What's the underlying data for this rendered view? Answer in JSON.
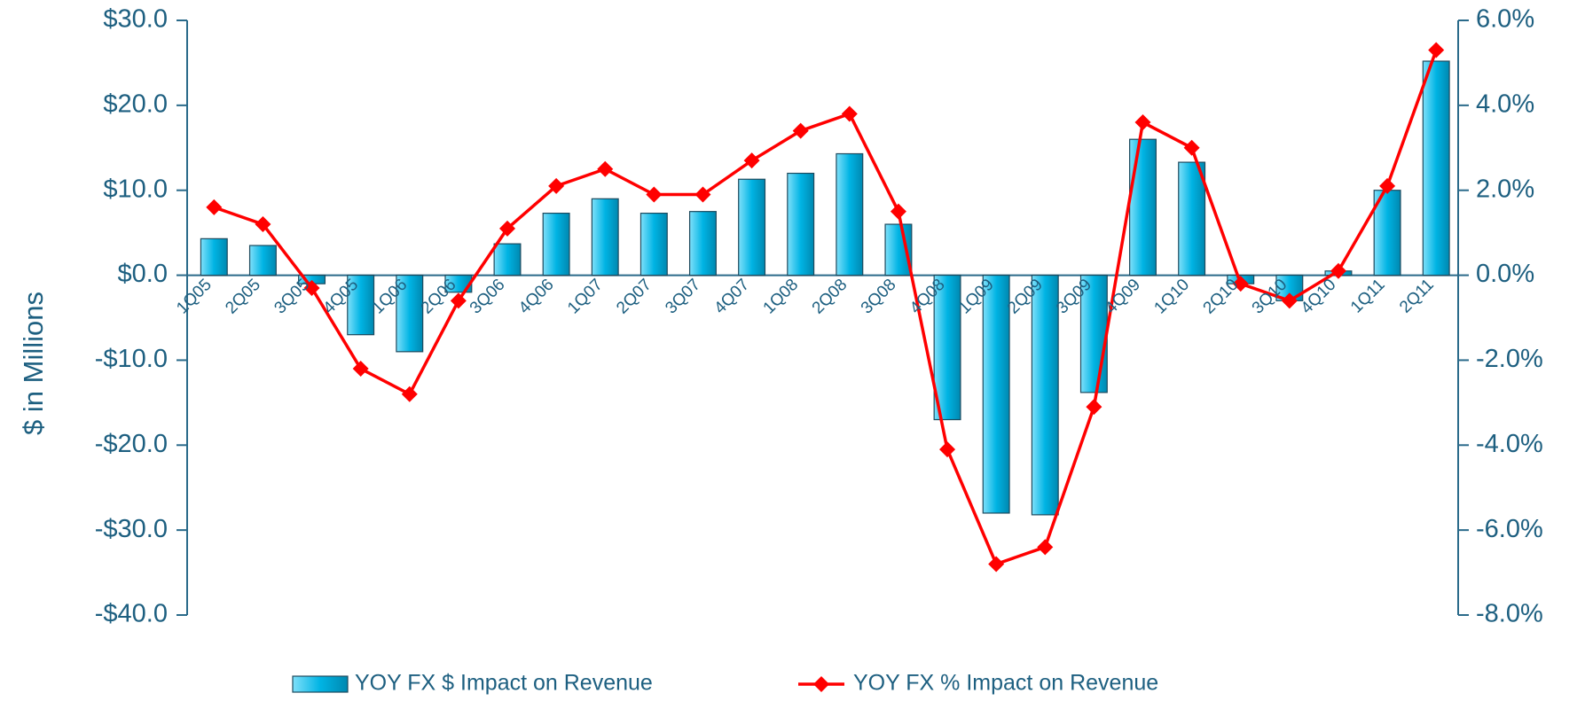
{
  "chart_data": {
    "type": "bar_line",
    "y_label": "$ in Millions",
    "categories": [
      "1Q05",
      "2Q05",
      "3Q05",
      "4Q05",
      "1Q06",
      "2Q06",
      "3Q06",
      "4Q06",
      "1Q07",
      "2Q07",
      "3Q07",
      "4Q07",
      "1Q08",
      "2Q08",
      "3Q08",
      "4Q08",
      "1Q09",
      "2Q09",
      "3Q09",
      "4Q09",
      "1Q10",
      "2Q10",
      "3Q10",
      "4Q10",
      "1Q11",
      "2Q11"
    ],
    "series": [
      {
        "name": "YOY FX $ Impact on Revenue",
        "type": "bar",
        "color": "#00b4e4",
        "values": [
          4.3,
          3.5,
          -1.0,
          -7.0,
          -9.0,
          -2.0,
          3.7,
          7.3,
          9.0,
          7.3,
          7.5,
          11.3,
          12.0,
          14.3,
          6.0,
          -17.0,
          -28.0,
          -28.2,
          -13.8,
          16.0,
          13.3,
          -1.0,
          -3.0,
          0.5,
          10.0,
          25.2
        ]
      },
      {
        "name": "YOY FX % Impact on Revenue",
        "type": "line",
        "axis": "y2",
        "color": "#ff0000",
        "values": [
          1.6,
          1.2,
          -0.3,
          -2.2,
          -2.8,
          -0.6,
          1.1,
          2.1,
          2.5,
          1.9,
          1.9,
          2.7,
          3.4,
          3.8,
          1.5,
          -4.1,
          -6.8,
          -6.4,
          -3.1,
          3.6,
          3.0,
          -0.2,
          -0.6,
          0.1,
          2.1,
          5.3
        ]
      }
    ],
    "ylim": [
      -40,
      30
    ],
    "yticks": [
      {
        "value": -40,
        "label": "-$40.0"
      },
      {
        "value": -30,
        "label": "-$30.0"
      },
      {
        "value": -20,
        "label": "-$20.0"
      },
      {
        "value": -10,
        "label": "-$10.0"
      },
      {
        "value": 0,
        "label": "$0.0"
      },
      {
        "value": 10,
        "label": "$10.0"
      },
      {
        "value": 20,
        "label": "$20.0"
      },
      {
        "value": 30,
        "label": "$30.0"
      }
    ],
    "y2lim": [
      -8,
      6
    ],
    "y2ticks": [
      {
        "value": -8,
        "label": "-8.0%"
      },
      {
        "value": -6,
        "label": "-6.0%"
      },
      {
        "value": -4,
        "label": "-4.0%"
      },
      {
        "value": -2,
        "label": "-2.0%"
      },
      {
        "value": 0,
        "label": "0.0%"
      },
      {
        "value": 2,
        "label": "2.0%"
      },
      {
        "value": 4,
        "label": "4.0%"
      },
      {
        "value": 6,
        "label": "6.0%"
      }
    ],
    "legend": "bottom"
  }
}
